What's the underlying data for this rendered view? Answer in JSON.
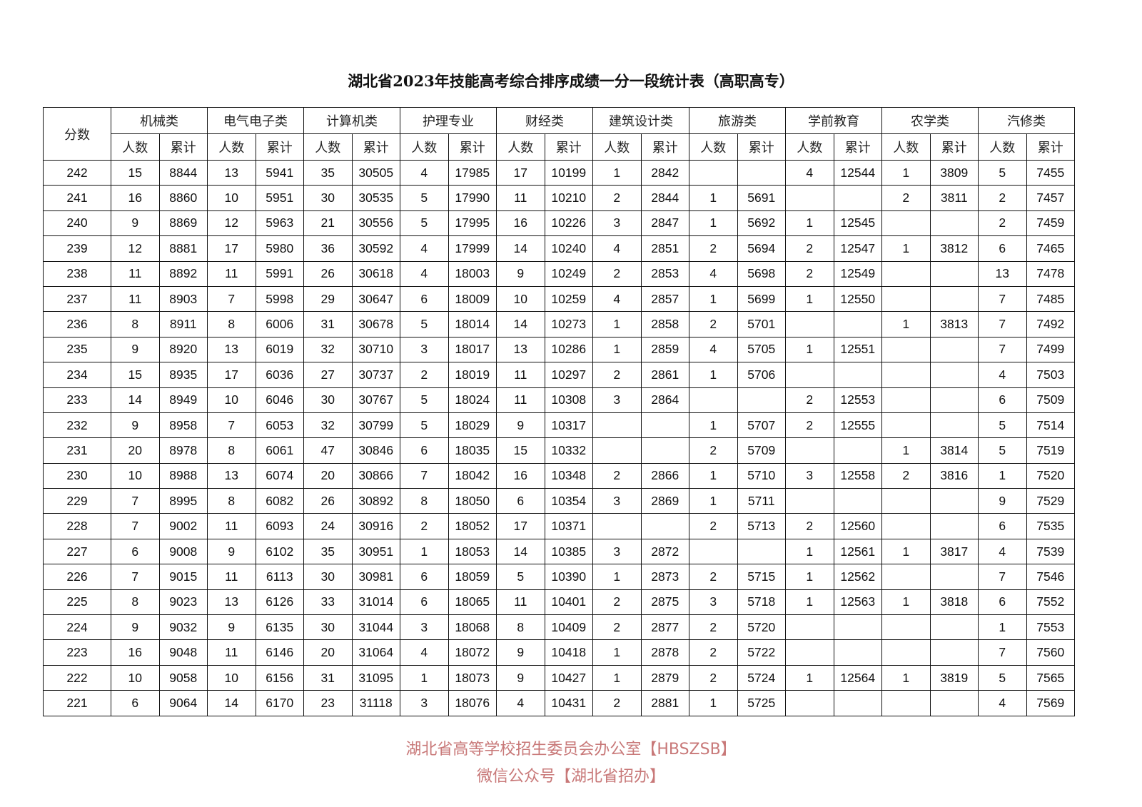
{
  "title": "湖北省2023年技能高考综合排序成绩一分一段统计表（高职高专）",
  "header": {
    "score": "分数",
    "groups": [
      "机械类",
      "电气电子类",
      "计算机类",
      "护理专业",
      "财经类",
      "建筑设计类",
      "旅游类",
      "学前教育",
      "农学类",
      "汽修类"
    ],
    "sub_count": "人数",
    "sub_cumulative": "累计"
  },
  "rows": [
    [
      "242",
      "15",
      "8844",
      "13",
      "5941",
      "35",
      "30505",
      "4",
      "17985",
      "17",
      "10199",
      "1",
      "2842",
      "",
      "",
      "4",
      "12544",
      "1",
      "3809",
      "5",
      "7455"
    ],
    [
      "241",
      "16",
      "8860",
      "10",
      "5951",
      "30",
      "30535",
      "5",
      "17990",
      "11",
      "10210",
      "2",
      "2844",
      "1",
      "5691",
      "",
      "",
      "2",
      "3811",
      "2",
      "7457"
    ],
    [
      "240",
      "9",
      "8869",
      "12",
      "5963",
      "21",
      "30556",
      "5",
      "17995",
      "16",
      "10226",
      "3",
      "2847",
      "1",
      "5692",
      "1",
      "12545",
      "",
      "",
      "2",
      "7459"
    ],
    [
      "239",
      "12",
      "8881",
      "17",
      "5980",
      "36",
      "30592",
      "4",
      "17999",
      "14",
      "10240",
      "4",
      "2851",
      "2",
      "5694",
      "2",
      "12547",
      "1",
      "3812",
      "6",
      "7465"
    ],
    [
      "238",
      "11",
      "8892",
      "11",
      "5991",
      "26",
      "30618",
      "4",
      "18003",
      "9",
      "10249",
      "2",
      "2853",
      "4",
      "5698",
      "2",
      "12549",
      "",
      "",
      "13",
      "7478"
    ],
    [
      "237",
      "11",
      "8903",
      "7",
      "5998",
      "29",
      "30647",
      "6",
      "18009",
      "10",
      "10259",
      "4",
      "2857",
      "1",
      "5699",
      "1",
      "12550",
      "",
      "",
      "7",
      "7485"
    ],
    [
      "236",
      "8",
      "8911",
      "8",
      "6006",
      "31",
      "30678",
      "5",
      "18014",
      "14",
      "10273",
      "1",
      "2858",
      "2",
      "5701",
      "",
      "",
      "1",
      "3813",
      "7",
      "7492"
    ],
    [
      "235",
      "9",
      "8920",
      "13",
      "6019",
      "32",
      "30710",
      "3",
      "18017",
      "13",
      "10286",
      "1",
      "2859",
      "4",
      "5705",
      "1",
      "12551",
      "",
      "",
      "7",
      "7499"
    ],
    [
      "234",
      "15",
      "8935",
      "17",
      "6036",
      "27",
      "30737",
      "2",
      "18019",
      "11",
      "10297",
      "2",
      "2861",
      "1",
      "5706",
      "",
      "",
      "",
      "",
      "4",
      "7503"
    ],
    [
      "233",
      "14",
      "8949",
      "10",
      "6046",
      "30",
      "30767",
      "5",
      "18024",
      "11",
      "10308",
      "3",
      "2864",
      "",
      "",
      "2",
      "12553",
      "",
      "",
      "6",
      "7509"
    ],
    [
      "232",
      "9",
      "8958",
      "7",
      "6053",
      "32",
      "30799",
      "5",
      "18029",
      "9",
      "10317",
      "",
      "",
      "1",
      "5707",
      "2",
      "12555",
      "",
      "",
      "5",
      "7514"
    ],
    [
      "231",
      "20",
      "8978",
      "8",
      "6061",
      "47",
      "30846",
      "6",
      "18035",
      "15",
      "10332",
      "",
      "",
      "2",
      "5709",
      "",
      "",
      "1",
      "3814",
      "5",
      "7519"
    ],
    [
      "230",
      "10",
      "8988",
      "13",
      "6074",
      "20",
      "30866",
      "7",
      "18042",
      "16",
      "10348",
      "2",
      "2866",
      "1",
      "5710",
      "3",
      "12558",
      "2",
      "3816",
      "1",
      "7520"
    ],
    [
      "229",
      "7",
      "8995",
      "8",
      "6082",
      "26",
      "30892",
      "8",
      "18050",
      "6",
      "10354",
      "3",
      "2869",
      "1",
      "5711",
      "",
      "",
      "",
      "",
      "9",
      "7529"
    ],
    [
      "228",
      "7",
      "9002",
      "11",
      "6093",
      "24",
      "30916",
      "2",
      "18052",
      "17",
      "10371",
      "",
      "",
      "2",
      "5713",
      "2",
      "12560",
      "",
      "",
      "6",
      "7535"
    ],
    [
      "227",
      "6",
      "9008",
      "9",
      "6102",
      "35",
      "30951",
      "1",
      "18053",
      "14",
      "10385",
      "3",
      "2872",
      "",
      "",
      "1",
      "12561",
      "1",
      "3817",
      "4",
      "7539"
    ],
    [
      "226",
      "7",
      "9015",
      "11",
      "6113",
      "30",
      "30981",
      "6",
      "18059",
      "5",
      "10390",
      "1",
      "2873",
      "2",
      "5715",
      "1",
      "12562",
      "",
      "",
      "7",
      "7546"
    ],
    [
      "225",
      "8",
      "9023",
      "13",
      "6126",
      "33",
      "31014",
      "6",
      "18065",
      "11",
      "10401",
      "2",
      "2875",
      "3",
      "5718",
      "1",
      "12563",
      "1",
      "3818",
      "6",
      "7552"
    ],
    [
      "224",
      "9",
      "9032",
      "9",
      "6135",
      "30",
      "31044",
      "3",
      "18068",
      "8",
      "10409",
      "2",
      "2877",
      "2",
      "5720",
      "",
      "",
      "",
      "",
      "1",
      "7553"
    ],
    [
      "223",
      "16",
      "9048",
      "11",
      "6146",
      "20",
      "31064",
      "4",
      "18072",
      "9",
      "10418",
      "1",
      "2878",
      "2",
      "5722",
      "",
      "",
      "",
      "",
      "7",
      "7560"
    ],
    [
      "222",
      "10",
      "9058",
      "10",
      "6156",
      "31",
      "31095",
      "1",
      "18073",
      "9",
      "10427",
      "1",
      "2879",
      "2",
      "5724",
      "1",
      "12564",
      "1",
      "3819",
      "5",
      "7565"
    ],
    [
      "221",
      "6",
      "9064",
      "14",
      "6170",
      "23",
      "31118",
      "3",
      "18076",
      "4",
      "10431",
      "2",
      "2881",
      "1",
      "5725",
      "",
      "",
      "",
      "",
      "4",
      "7569"
    ]
  ],
  "watermark": {
    "line1": "湖北省高等学校招生委员会办公室【HBSZSB】",
    "line2": "微信公众号【湖北省招办】",
    "color": "#c87878"
  }
}
